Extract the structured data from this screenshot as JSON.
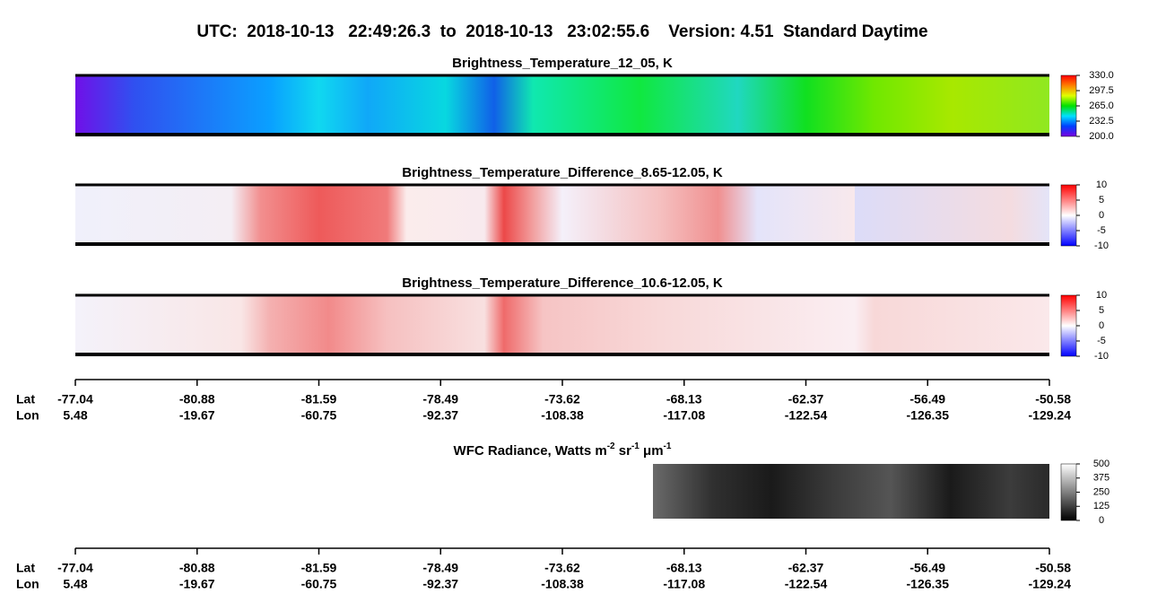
{
  "header": {
    "title": "UTC:  2018-10-13   22:49:26.3  to  2018-10-13   23:02:55.6    Version: 4.51  Standard Daytime"
  },
  "chart_data": [
    {
      "type": "heatmap",
      "title": "Brightness_Temperature_12_05, K",
      "ylim": [
        200,
        330
      ],
      "yticks": [
        {
          "value": 200,
          "label": "200.0"
        },
        {
          "value": 232.5,
          "label": "232.5"
        },
        {
          "value": 265,
          "label": "265.0"
        },
        {
          "value": 297.5,
          "label": "297.5"
        },
        {
          "value": 330,
          "label": "330.0"
        }
      ],
      "colors": [
        "#7a00e0",
        "#0040ff",
        "#00e0ff",
        "#00e000",
        "#e0ff00",
        "#ff8000",
        "#ff0000"
      ]
    },
    {
      "type": "heatmap",
      "title": "Brightness_Temperature_Difference_8.65-12.05, K",
      "ylim": [
        -10,
        10
      ],
      "yticks": [
        -10,
        -5,
        0,
        5,
        10
      ],
      "colors": [
        "#0000ff",
        "#ffffff",
        "#ff0000"
      ]
    },
    {
      "type": "heatmap",
      "title": "Brightness_Temperature_Difference_10.6-12.05, K",
      "ylim": [
        -10,
        10
      ],
      "yticks": [
        -10,
        -5,
        0,
        5,
        10
      ],
      "colors": [
        "#0000ff",
        "#ffffff",
        "#ff0000"
      ]
    },
    {
      "type": "heatmap",
      "title": [
        "WFC Radiance, Watts m",
        "-2",
        " sr",
        "-1",
        " μm",
        "-1"
      ],
      "ylim": [
        0,
        500
      ],
      "yticks": [
        0,
        125,
        250,
        375,
        500
      ],
      "colors": [
        "#000000",
        "#ffffff"
      ]
    }
  ],
  "lat_lon_axes": [
    {
      "rows": [
        {
          "name": "Lat",
          "labels": [
            "-77.04",
            "-80.88",
            "-81.59",
            "-78.49",
            "-73.62",
            "-68.13",
            "-62.37",
            "-56.49",
            "-50.58"
          ]
        },
        {
          "name": "Lon",
          "labels": [
            "5.48",
            "-19.67",
            "-60.75",
            "-92.37",
            "-108.38",
            "-117.08",
            "-122.54",
            "-126.35",
            "-129.24"
          ]
        }
      ]
    },
    {
      "rows": [
        {
          "name": "Lat",
          "labels": [
            "-77.04",
            "-80.88",
            "-81.59",
            "-78.49",
            "-73.62",
            "-68.13",
            "-62.37",
            "-56.49",
            "-50.58"
          ]
        },
        {
          "name": "Lon",
          "labels": [
            "5.48",
            "-19.67",
            "-60.75",
            "-92.37",
            "-108.38",
            "-117.08",
            "-122.54",
            "-126.35",
            "-129.24"
          ]
        }
      ]
    }
  ]
}
